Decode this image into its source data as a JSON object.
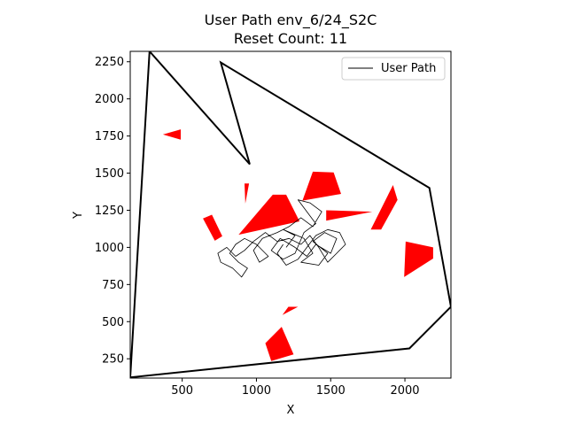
{
  "chart_data": {
    "type": "line",
    "title_line1": "User Path env_6/24_S2C",
    "title_line2": "Reset Count: 11",
    "xlabel": "X",
    "ylabel": "Y",
    "xlim": [
      150,
      2310
    ],
    "ylim": [
      120,
      2320
    ],
    "xticks": [
      500,
      1000,
      1500,
      2000
    ],
    "yticks": [
      250,
      500,
      750,
      1000,
      1250,
      1500,
      1750,
      2000,
      2250
    ],
    "legend": {
      "label": "User Path",
      "placement": "top-right"
    },
    "colors": {
      "boundary": "#000000",
      "obstacle": "#ff0000",
      "path": "#000000"
    },
    "boundary": [
      [
        150,
        125
      ],
      [
        280,
        2320
      ],
      [
        955,
        1560
      ],
      [
        760,
        2245
      ],
      [
        2165,
        1400
      ],
      [
        2310,
        600
      ],
      [
        2030,
        320
      ],
      [
        150,
        125
      ]
    ],
    "obstacles": [
      [
        [
          370,
          1760
        ],
        [
          490,
          1795
        ],
        [
          490,
          1725
        ]
      ],
      [
        [
          920,
          1430
        ],
        [
          950,
          1430
        ],
        [
          925,
          1295
        ]
      ],
      [
        [
          640,
          1195
        ],
        [
          700,
          1220
        ],
        [
          770,
          1075
        ],
        [
          720,
          1045
        ]
      ],
      [
        [
          880,
          1085
        ],
        [
          1110,
          1355
        ],
        [
          1200,
          1355
        ],
        [
          1290,
          1175
        ]
      ],
      [
        [
          1310,
          1315
        ],
        [
          1380,
          1510
        ],
        [
          1520,
          1505
        ],
        [
          1570,
          1360
        ]
      ],
      [
        [
          1470,
          1250
        ],
        [
          1470,
          1180
        ],
        [
          1780,
          1240
        ]
      ],
      [
        [
          1770,
          1120
        ],
        [
          1840,
          1120
        ],
        [
          1950,
          1320
        ],
        [
          1920,
          1420
        ]
      ],
      [
        [
          1995,
          800
        ],
        [
          2005,
          1040
        ],
        [
          2190,
          1000
        ],
        [
          2190,
          925
        ]
      ],
      [
        [
          1175,
          545
        ],
        [
          1215,
          600
        ],
        [
          1280,
          600
        ]
      ],
      [
        [
          1060,
          355
        ],
        [
          1170,
          465
        ],
        [
          1250,
          280
        ],
        [
          1100,
          235
        ]
      ]
    ],
    "user_path": [
      [
        1200,
        1000
      ],
      [
        1260,
        1080
      ],
      [
        1180,
        1120
      ],
      [
        1320,
        1060
      ],
      [
        1380,
        960
      ],
      [
        1300,
        900
      ],
      [
        1420,
        880
      ],
      [
        1480,
        960
      ],
      [
        1380,
        1040
      ],
      [
        1460,
        1100
      ],
      [
        1540,
        1060
      ],
      [
        1500,
        960
      ],
      [
        1400,
        1020
      ],
      [
        1340,
        940
      ],
      [
        1260,
        1000
      ],
      [
        1160,
        1060
      ],
      [
        1100,
        980
      ],
      [
        1180,
        920
      ],
      [
        1260,
        960
      ],
      [
        1320,
        1100
      ],
      [
        1400,
        1160
      ],
      [
        1340,
        1240
      ],
      [
        1280,
        1320
      ],
      [
        1360,
        1300
      ],
      [
        1440,
        1240
      ],
      [
        1380,
        1140
      ],
      [
        1300,
        1200
      ],
      [
        1220,
        1140
      ],
      [
        1140,
        1100
      ],
      [
        1040,
        1060
      ],
      [
        980,
        980
      ],
      [
        1020,
        900
      ],
      [
        1080,
        940
      ],
      [
        1000,
        1020
      ],
      [
        920,
        1060
      ],
      [
        860,
        1020
      ],
      [
        820,
        960
      ],
      [
        880,
        900
      ],
      [
        940,
        860
      ],
      [
        900,
        800
      ],
      [
        840,
        860
      ],
      [
        760,
        900
      ],
      [
        740,
        960
      ],
      [
        800,
        1000
      ],
      [
        860,
        940
      ],
      [
        920,
        980
      ],
      [
        980,
        1040
      ],
      [
        1060,
        1100
      ],
      [
        1140,
        1040
      ],
      [
        1220,
        1060
      ],
      [
        1300,
        1020
      ],
      [
        1360,
        1080
      ],
      [
        1420,
        1000
      ],
      [
        1480,
        900
      ],
      [
        1540,
        960
      ],
      [
        1600,
        1020
      ],
      [
        1560,
        1100
      ],
      [
        1480,
        1120
      ],
      [
        1400,
        1080
      ],
      [
        1340,
        1000
      ],
      [
        1280,
        920
      ],
      [
        1200,
        880
      ],
      [
        1140,
        960
      ],
      [
        1180,
        1020
      ]
    ]
  }
}
